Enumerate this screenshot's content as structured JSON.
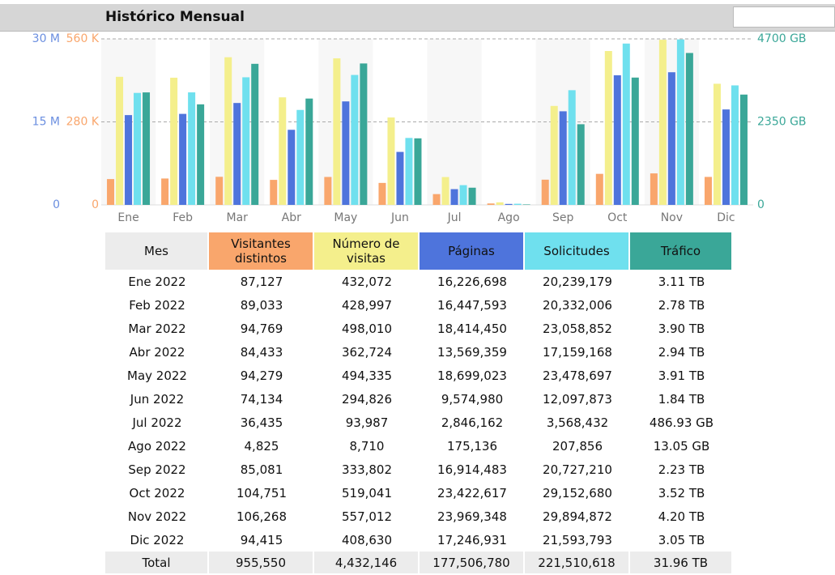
{
  "title": "Histórico Mensual",
  "chart_data": {
    "type": "bar",
    "categories": [
      "Ene",
      "Feb",
      "Mar",
      "Abr",
      "May",
      "Jun",
      "Jul",
      "Ago",
      "Sep",
      "Oct",
      "Nov",
      "Dic"
    ],
    "series": [
      {
        "name": "Visitantes distintos",
        "color": "#f9a66c",
        "axis": "y3",
        "values": [
          87127,
          89033,
          94769,
          84433,
          94279,
          74134,
          36435,
          4825,
          85081,
          104751,
          106268,
          94415
        ]
      },
      {
        "name": "Número de visitas",
        "color": "#f4ef8c",
        "axis": "y3",
        "values": [
          432072,
          428997,
          498010,
          362724,
          494335,
          294826,
          93987,
          8710,
          333802,
          519041,
          557012,
          408630
        ]
      },
      {
        "name": "Páginas",
        "color": "#4e74dc",
        "values": [
          16226698,
          16447593,
          18414450,
          13569359,
          18699023,
          9574980,
          2846162,
          175136,
          16914483,
          23422617,
          23969348,
          17246931
        ]
      },
      {
        "name": "Solicitudes",
        "color": "#6fe0ee",
        "values": [
          20239179,
          20332006,
          23058852,
          17159168,
          23478697,
          12097873,
          3568432,
          207856,
          20727210,
          29152680,
          29894872,
          21593793
        ]
      },
      {
        "name": "Tráfico",
        "color": "#3aa798",
        "axis": "y2",
        "values": [
          3184.64,
          2846.72,
          3993.6,
          3010.56,
          4003.84,
          1884.16,
          486.93,
          13.05,
          2283.52,
          3604.48,
          4300.8,
          3123.2
        ]
      }
    ],
    "ylim": [
      0,
      30000000
    ],
    "yticks": [
      0,
      {
        "value": 15000000,
        "label": "15 M"
      },
      {
        "value": 30000000,
        "label": "30 M"
      }
    ],
    "y3lim": [
      0,
      560000
    ],
    "y3ticks": [
      0,
      {
        "value": 280000,
        "label": "280 K"
      },
      {
        "value": 560000,
        "label": "560 K"
      }
    ],
    "y2lim": [
      0,
      4700
    ],
    "y2ticks": [
      0,
      {
        "value": 2350,
        "label": "2350 GB"
      },
      {
        "value": 4700,
        "label": "4700 GB"
      }
    ],
    "grid": true
  },
  "table": {
    "header": "Mes",
    "rows": [
      [
        "Ene 2022",
        "87,127",
        "432,072",
        "16,226,698",
        "20,239,179",
        "3.11 TB"
      ],
      [
        "Feb 2022",
        "89,033",
        "428,997",
        "16,447,593",
        "20,332,006",
        "2.78 TB"
      ],
      [
        "Mar 2022",
        "94,769",
        "498,010",
        "18,414,450",
        "23,058,852",
        "3.90 TB"
      ],
      [
        "Abr 2022",
        "84,433",
        "362,724",
        "13,569,359",
        "17,159,168",
        "2.94 TB"
      ],
      [
        "May 2022",
        "94,279",
        "494,335",
        "18,699,023",
        "23,478,697",
        "3.91 TB"
      ],
      [
        "Jun 2022",
        "74,134",
        "294,826",
        "9,574,980",
        "12,097,873",
        "1.84 TB"
      ],
      [
        "Jul 2022",
        "36,435",
        "93,987",
        "2,846,162",
        "3,568,432",
        "486.93 GB"
      ],
      [
        "Ago 2022",
        "4,825",
        "8,710",
        "175,136",
        "207,856",
        "13.05 GB"
      ],
      [
        "Sep 2022",
        "85,081",
        "333,802",
        "16,914,483",
        "20,727,210",
        "2.23 TB"
      ],
      [
        "Oct 2022",
        "104,751",
        "519,041",
        "23,422,617",
        "29,152,680",
        "3.52 TB"
      ],
      [
        "Nov 2022",
        "106,268",
        "557,012",
        "23,969,348",
        "29,894,872",
        "4.20 TB"
      ],
      [
        "Dic 2022",
        "94,415",
        "408,630",
        "17,246,931",
        "21,593,793",
        "3.05 TB"
      ]
    ],
    "total": [
      "Total",
      "955,550",
      "4,432,146",
      "177,506,780",
      "221,510,618",
      "31.96 TB"
    ]
  }
}
